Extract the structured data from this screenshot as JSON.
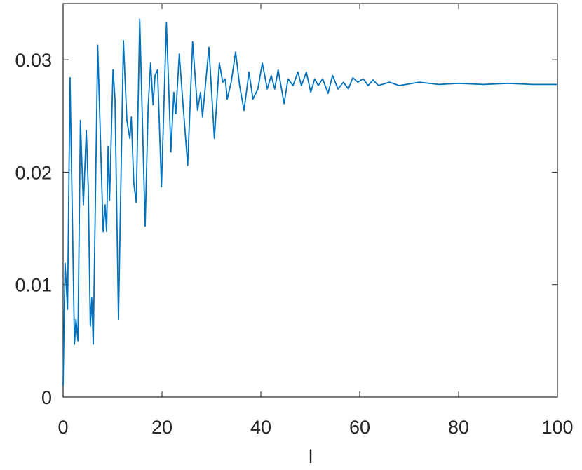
{
  "chart_data": {
    "type": "line",
    "x_label": "l",
    "xlim": [
      0,
      100
    ],
    "xticks": [
      0,
      20,
      40,
      60,
      80,
      100
    ],
    "ylim": [
      0,
      0.035
    ],
    "yticks": [
      0,
      0.01,
      0.02,
      0.03
    ],
    "grid": false,
    "series": [
      {
        "color": "#0072bd",
        "x": [
          0,
          0.4,
          0.9,
          1.4,
          2.3,
          2.6,
          3.0,
          3.5,
          4.1,
          4.7,
          5.1,
          5.5,
          5.8,
          6.1,
          7.0,
          8.1,
          8.5,
          8.8,
          9.1,
          9.4,
          10.1,
          10.5,
          11.2,
          12.2,
          12.9,
          13.5,
          13.8,
          14.3,
          14.8,
          15.5,
          16.6,
          17.2,
          17.7,
          18.2,
          18.6,
          19.1,
          19.9,
          20.9,
          21.4,
          21.8,
          22.4,
          22.8,
          23.5,
          24.4,
          25.2,
          26.2,
          27.2,
          27.8,
          28.2,
          29.5,
          30.6,
          31.6,
          32.3,
          32.8,
          33.2,
          34.0,
          34.9,
          35.7,
          36.6,
          37.6,
          38.4,
          39.4,
          40.3,
          41.3,
          42.1,
          42.8,
          43.5,
          44.7,
          45.5,
          46.5,
          47.5,
          48.2,
          49.2,
          50.1,
          50.9,
          51.6,
          52.5,
          53.6,
          54.5,
          55.6,
          56.7,
          57.7,
          58.6,
          59.6,
          60.7,
          61.7,
          62.7,
          63.8,
          66,
          68,
          72,
          76,
          80,
          85,
          90,
          95,
          100
        ],
        "values": [
          0.001,
          0.0119,
          0.0078,
          0.0284,
          0.0047,
          0.0069,
          0.005,
          0.0246,
          0.0171,
          0.0237,
          0.0184,
          0.0063,
          0.0088,
          0.0047,
          0.0313,
          0.0147,
          0.0171,
          0.0147,
          0.0223,
          0.0175,
          0.0291,
          0.0265,
          0.0069,
          0.0317,
          0.0246,
          0.023,
          0.0249,
          0.019,
          0.0173,
          0.0336,
          0.0152,
          0.0258,
          0.0297,
          0.026,
          0.0286,
          0.0291,
          0.0187,
          0.0333,
          0.0271,
          0.0218,
          0.0271,
          0.0252,
          0.0305,
          0.0252,
          0.0206,
          0.0316,
          0.0255,
          0.0271,
          0.0249,
          0.0311,
          0.023,
          0.0297,
          0.028,
          0.0283,
          0.0265,
          0.028,
          0.0307,
          0.0277,
          0.0255,
          0.0289,
          0.0265,
          0.0274,
          0.0297,
          0.0274,
          0.0286,
          0.0274,
          0.0291,
          0.0261,
          0.0283,
          0.0277,
          0.0289,
          0.0277,
          0.0289,
          0.0271,
          0.0283,
          0.0277,
          0.0283,
          0.027,
          0.0286,
          0.0274,
          0.028,
          0.0274,
          0.0284,
          0.028,
          0.0283,
          0.0277,
          0.0282,
          0.0277,
          0.028,
          0.0277,
          0.028,
          0.0278,
          0.0279,
          0.0278,
          0.0279,
          0.0278,
          0.0278
        ]
      }
    ]
  }
}
